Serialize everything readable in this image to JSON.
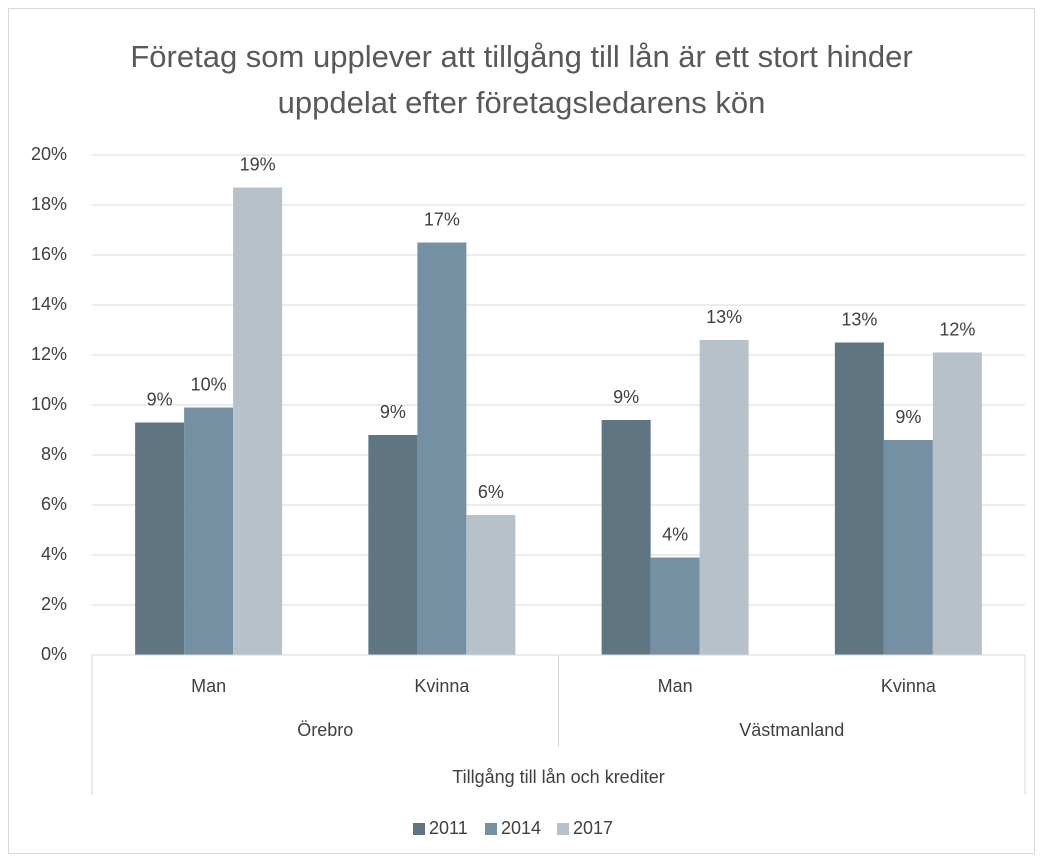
{
  "chart_data": {
    "type": "bar",
    "title": "Företag som upplever att tillgång till lån är ett stort hinder uppdelat efter företagsledarens kön",
    "xlabel": "Tillgång till lån och krediter",
    "category_groups": [
      {
        "name": "Örebro",
        "categories": [
          "Man",
          "Kvinna"
        ]
      },
      {
        "name": "Västmanland",
        "categories": [
          "Man",
          "Kvinna"
        ]
      }
    ],
    "series": [
      {
        "name": "2011",
        "color": "#5f7582",
        "values": [
          9.3,
          8.8,
          9.4,
          12.5
        ],
        "value_labels": [
          "9%",
          "9%",
          "9%",
          "13%"
        ]
      },
      {
        "name": "2014",
        "color": "#7590a3",
        "values": [
          9.9,
          16.5,
          3.9,
          8.6
        ],
        "value_labels": [
          "10%",
          "17%",
          "4%",
          "9%"
        ]
      },
      {
        "name": "2017",
        "color": "#b6c1c9",
        "values": [
          18.7,
          5.6,
          12.6,
          12.1
        ],
        "value_labels": [
          "19%",
          "6%",
          "13%",
          "12%"
        ]
      }
    ],
    "ylim": [
      0,
      20
    ],
    "yticks": [
      {
        "value": 0,
        "label": "0%"
      },
      {
        "value": 2,
        "label": "2%"
      },
      {
        "value": 4,
        "label": "4%"
      },
      {
        "value": 6,
        "label": "6%"
      },
      {
        "value": 8,
        "label": "8%"
      },
      {
        "value": 10,
        "label": "10%"
      },
      {
        "value": 12,
        "label": "12%"
      },
      {
        "value": 14,
        "label": "14%"
      },
      {
        "value": 16,
        "label": "16%"
      },
      {
        "value": 18,
        "label": "18%"
      },
      {
        "value": 20,
        "label": "20%"
      }
    ],
    "grid": true,
    "legend": "bottom"
  }
}
